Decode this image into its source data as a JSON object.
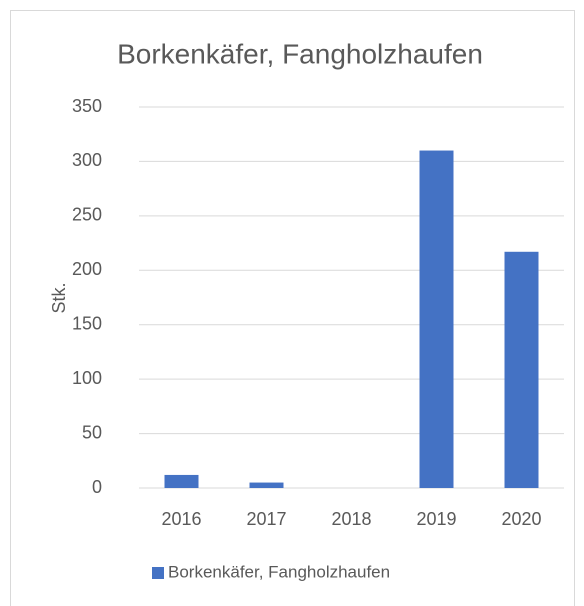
{
  "chart_data": {
    "type": "bar",
    "title": "Borkenkäfer, Fangholzhaufen",
    "y_label": "Stk.",
    "categories": [
      "2016",
      "2017",
      "2018",
      "2019",
      "2020"
    ],
    "series": [
      {
        "name": "Borkenkäfer, Fangholzhaufen",
        "color": "#4472c4",
        "values": [
          12,
          5,
          0,
          310,
          217
        ]
      }
    ],
    "ylim": [
      0,
      350
    ],
    "yticks": [
      0,
      50,
      100,
      150,
      200,
      250,
      300,
      350
    ],
    "grid": true,
    "legend": "bottom"
  }
}
